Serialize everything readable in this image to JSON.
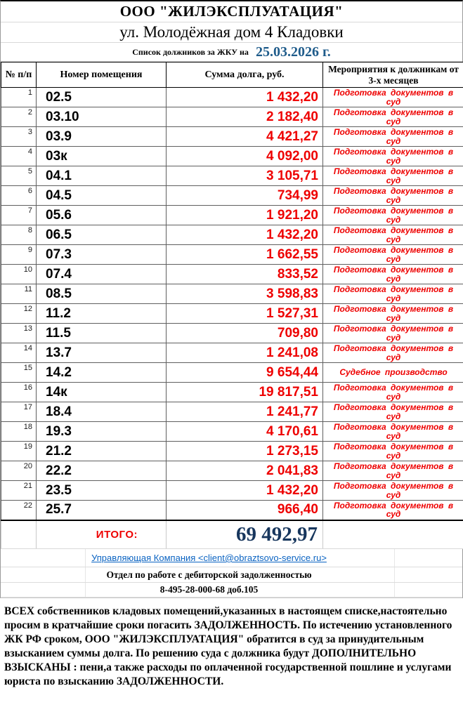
{
  "colors": {
    "debt_red": "#ee0000",
    "date_blue": "#1f5c8b",
    "total_navy": "#17365d",
    "link_blue": "#0a63c2"
  },
  "header": {
    "company": "ООО \"ЖИЛЭКСПЛУАТАЦИЯ\"",
    "address": "ул. Молодёжная дом 4 Кладовки",
    "list_label": "Список должников за ЖКУ на",
    "list_date": "25.03.2026 г."
  },
  "table": {
    "columns": {
      "num": "№ п/п",
      "room": "Номер помещения",
      "debt": "Сумма долга, руб.",
      "action": "Мероприятия к должникам от 3-х месяцев"
    },
    "rows": [
      {
        "num": "1",
        "room": "02.5",
        "debt": "1 432,20",
        "action": "Подготовка документов в суд"
      },
      {
        "num": "2",
        "room": "03.10",
        "debt": "2 182,40",
        "action": "Подготовка документов в суд"
      },
      {
        "num": "3",
        "room": "03.9",
        "debt": "4 421,27",
        "action": "Подготовка документов в суд"
      },
      {
        "num": "4",
        "room": "03к",
        "debt": "4 092,00",
        "action": "Подготовка документов в суд"
      },
      {
        "num": "5",
        "room": "04.1",
        "debt": "3 105,71",
        "action": "Подготовка документов в суд"
      },
      {
        "num": "6",
        "room": "04.5",
        "debt": "734,99",
        "action": "Подготовка документов в суд"
      },
      {
        "num": "7",
        "room": "05.6",
        "debt": "1 921,20",
        "action": "Подготовка документов в суд"
      },
      {
        "num": "8",
        "room": "06.5",
        "debt": "1 432,20",
        "action": "Подготовка документов в суд"
      },
      {
        "num": "9",
        "room": "07.3",
        "debt": "1 662,55",
        "action": "Подготовка документов в суд"
      },
      {
        "num": "10",
        "room": "07.4",
        "debt": "833,52",
        "action": "Подготовка документов в суд"
      },
      {
        "num": "11",
        "room": "08.5",
        "debt": "3 598,83",
        "action": "Подготовка документов в суд"
      },
      {
        "num": "12",
        "room": "11.2",
        "debt": "1 527,31",
        "action": "Подготовка документов в суд"
      },
      {
        "num": "13",
        "room": "11.5",
        "debt": "709,80",
        "action": "Подготовка документов в суд"
      },
      {
        "num": "14",
        "room": "13.7",
        "debt": "1 241,08",
        "action": "Подготовка документов в суд"
      },
      {
        "num": "15",
        "room": "14.2",
        "debt": "9 654,44",
        "action": "Судебное производство"
      },
      {
        "num": "16",
        "room": "14к",
        "debt": "19 817,51",
        "action": "Подготовка документов в суд"
      },
      {
        "num": "17",
        "room": "18.4",
        "debt": "1 241,77",
        "action": "Подготовка документов в суд"
      },
      {
        "num": "18",
        "room": "19.3",
        "debt": "4 170,61",
        "action": "Подготовка документов в суд"
      },
      {
        "num": "19",
        "room": "21.2",
        "debt": "1 273,15",
        "action": "Подготовка документов в суд"
      },
      {
        "num": "20",
        "room": "22.2",
        "debt": "2 041,83",
        "action": "Подготовка документов в суд"
      },
      {
        "num": "21",
        "room": "23.5",
        "debt": "1 432,20",
        "action": "Подготовка документов в суд"
      },
      {
        "num": "22",
        "room": "25.7",
        "debt": "966,40",
        "action": "Подготовка документов в суд"
      }
    ],
    "total_label": "ИТОГО:",
    "total_value": "69 492,97"
  },
  "footer": {
    "link": "Управляющая Компания <client@obraztsovo-service.ru>",
    "department": "Отдел по работе с дебиторской задолженностью",
    "phone": "8-495-28-000-68 доб.105"
  },
  "notice": "ВСЕХ собственников кладовых помещений,указанных в настоящем списке,настоятельно просим в кратчайшие сроки погасить ЗАДОЛЖЕННОСТЬ. По истечению установленного ЖК РФ сроком, ООО \"ЖИЛЭКСПЛУАТАЦИЯ\" обратится в суд за принудительным взысканием суммы долга. По решению суда с должника будут ДОПОЛНИТЕЛЬНО ВЗЫСКАНЫ : пени,а также расходы по оплаченной государственной пошлине и услугами юриста по взысканию ЗАДОЛЖЕННОСТИ."
}
